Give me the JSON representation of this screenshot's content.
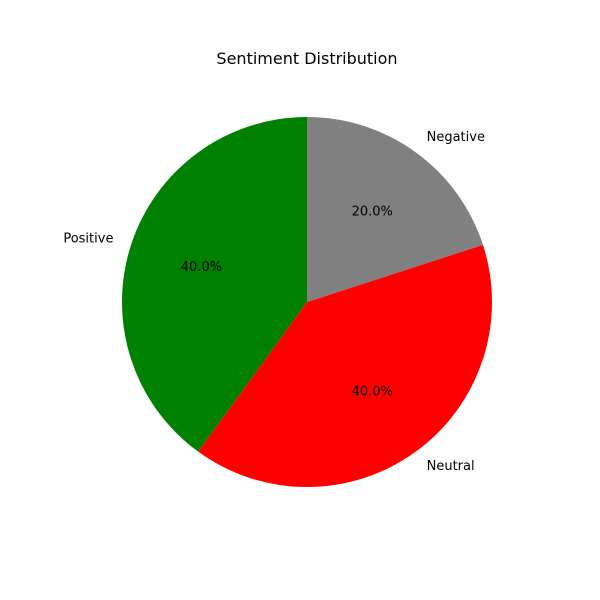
{
  "chart_data": {
    "type": "pie",
    "title": "Sentiment Distribution",
    "start_angle_deg": 90,
    "direction": "counterclockwise",
    "slices": [
      {
        "label": "Positive",
        "value": 40.0,
        "pct_label": "40.0%",
        "color": "#008000"
      },
      {
        "label": "Neutral",
        "value": 40.0,
        "pct_label": "40.0%",
        "color": "#ff0000"
      },
      {
        "label": "Negative",
        "value": 20.0,
        "pct_label": "20.0%",
        "color": "#808080"
      }
    ]
  }
}
